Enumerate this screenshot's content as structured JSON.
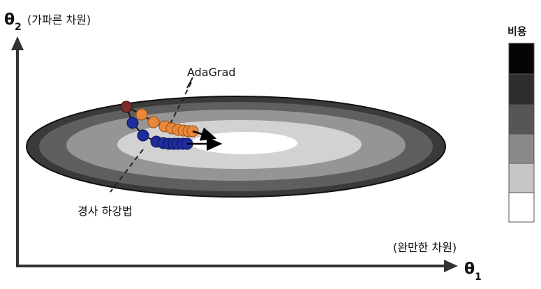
{
  "axes": {
    "y_symbol": "θ",
    "y_subscript": "2",
    "y_note": "(가파른 차원)",
    "x_symbol": "θ",
    "x_subscript": "1",
    "x_note": "(완만한 차원)"
  },
  "labels": {
    "adagrad": "AdaGrad",
    "gradient_descent": "경사 하강법"
  },
  "legend": {
    "title": "비용",
    "levels": [
      "#050505",
      "#2e2e2e",
      "#565656",
      "#8a8a8a",
      "#c6c6c6",
      "#ffffff"
    ]
  },
  "contours": {
    "fills": [
      "#3a3a3a",
      "#5f5f5f",
      "#959595",
      "#d2d2d2",
      "#ffffff"
    ]
  },
  "paths": {
    "adagrad_color": "#e8883a",
    "gradient_descent_color": "#1f2c9c",
    "start_color": "#7a2a2a"
  }
}
